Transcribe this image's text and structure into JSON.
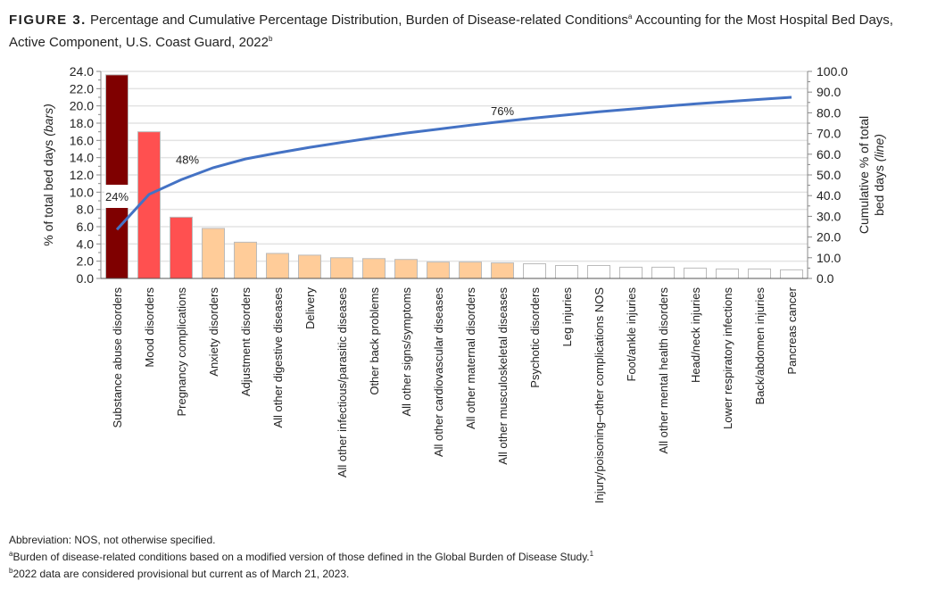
{
  "title": {
    "figure_label": "FIGURE 3.",
    "text": "Percentage and Cumulative Percentage Distribution, Burden of Disease-related Conditions",
    "sup_a": "a",
    "text2": " Accounting for the Most Hospital Bed Days, Active Component, U.S. Coast Guard, 2022",
    "sup_b": "b"
  },
  "chart_data": {
    "type": "bar+line",
    "categories": [
      "Substance abuse disorders",
      "Mood disorders",
      "Pregnancy complications",
      "Anxiety disorders",
      "Adjustment disorders",
      "All other digestive diseases",
      "Delivery",
      "All other infectious/parasitic diseases",
      "Other back problems",
      "All other signs/symptoms",
      "All other cardiovascular diseases",
      "All other maternal disorders",
      "All other musculoskeletal diseases",
      "Psychotic disorders",
      "Leg injuries",
      "Injury/poisoning–other complications NOS",
      "Foot/ankle injuries",
      "All other mental health disorders",
      "Head/neck injuries",
      "Lower respiratory infections",
      "Back/abdomen injuries",
      "Pancreas cancer"
    ],
    "series": [
      {
        "axis": "left",
        "type": "bar",
        "values": [
          23.6,
          17.0,
          7.1,
          5.8,
          4.2,
          2.9,
          2.7,
          2.4,
          2.3,
          2.2,
          1.9,
          1.9,
          1.8,
          1.7,
          1.5,
          1.5,
          1.3,
          1.3,
          1.2,
          1.1,
          1.1,
          1.0
        ]
      },
      {
        "axis": "right",
        "type": "line",
        "values": [
          23.6,
          40.6,
          47.7,
          53.5,
          57.7,
          60.6,
          63.3,
          65.7,
          68.0,
          70.2,
          72.1,
          74.0,
          75.8,
          77.5,
          79.0,
          80.5,
          81.8,
          83.1,
          84.3,
          85.4,
          86.5,
          87.5
        ]
      }
    ],
    "bar_colors": [
      "#7f0000",
      "#ff5050",
      "#ff5050",
      "#ffcc99",
      "#ffcc99",
      "#ffcc99",
      "#ffcc99",
      "#ffcc99",
      "#ffcc99",
      "#ffcc99",
      "#ffcc99",
      "#ffcc99",
      "#ffcc99",
      "#ffffff",
      "#ffffff",
      "#ffffff",
      "#ffffff",
      "#ffffff",
      "#ffffff",
      "#ffffff",
      "#ffffff",
      "#ffffff"
    ],
    "line_color": "#4472c4",
    "ylabel_left": "% of total bed days",
    "ylabel_left_italic": "(bars)",
    "ylabel_right": "Cumulative % of total",
    "ylabel_right2": "bed days",
    "ylabel_right_italic": "(line)",
    "ylim_left": [
      0,
      24
    ],
    "ylim_right": [
      0,
      100
    ],
    "left_ticks": [
      "0.0",
      "2.0",
      "4.0",
      "6.0",
      "8.0",
      "10.0",
      "12.0",
      "14.0",
      "16.0",
      "18.0",
      "20.0",
      "22.0",
      "24.0"
    ],
    "right_ticks": [
      "0.0",
      "10.0",
      "20.0",
      "30.0",
      "40.0",
      "50.0",
      "60.0",
      "70.0",
      "80.0",
      "90.0",
      "100.0"
    ],
    "annotations": [
      {
        "text": "24%",
        "category_index": 0
      },
      {
        "text": "48%",
        "category_index": 2
      },
      {
        "text": "76%",
        "category_index": 12
      }
    ],
    "grid": true
  },
  "notes": {
    "abbrev": "Abbreviation: NOS, not otherwise specified.",
    "a_mark": "a",
    "a_text": "Burden of disease-related conditions based on a modified version of those defined in the Global Burden of Disease Study.",
    "a_sup": "1",
    "b_mark": "b",
    "b_text": "2022 data are considered provisional but current as of March 21, 2023."
  }
}
